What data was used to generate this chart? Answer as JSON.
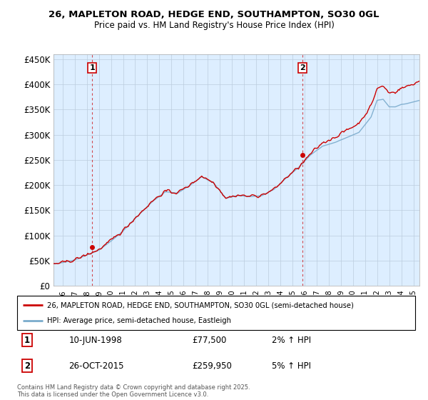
{
  "title": "26, MAPLETON ROAD, HEDGE END, SOUTHAMPTON, SO30 0GL",
  "subtitle": "Price paid vs. HM Land Registry's House Price Index (HPI)",
  "ylabel_ticks": [
    "£0",
    "£50K",
    "£100K",
    "£150K",
    "£200K",
    "£250K",
    "£300K",
    "£350K",
    "£400K",
    "£450K"
  ],
  "ytick_values": [
    0,
    50000,
    100000,
    150000,
    200000,
    250000,
    300000,
    350000,
    400000,
    450000
  ],
  "ylim": [
    0,
    460000
  ],
  "xlim_start": 1995.25,
  "xlim_end": 2025.5,
  "marker1_x": 1998.44,
  "marker1_y": 77500,
  "marker1_label": "1",
  "marker2_x": 2015.82,
  "marker2_y": 259950,
  "marker2_label": "2",
  "legend_line1": "26, MAPLETON ROAD, HEDGE END, SOUTHAMPTON, SO30 0GL (semi-detached house)",
  "legend_line2": "HPI: Average price, semi-detached house, Eastleigh",
  "annotation1_date": "10-JUN-1998",
  "annotation1_price": "£77,500",
  "annotation1_hpi": "2% ↑ HPI",
  "annotation2_date": "26-OCT-2015",
  "annotation2_price": "£259,950",
  "annotation2_hpi": "5% ↑ HPI",
  "footer": "Contains HM Land Registry data © Crown copyright and database right 2025.\nThis data is licensed under the Open Government Licence v3.0.",
  "line_color_red": "#cc0000",
  "line_color_blue": "#7aabcc",
  "bg_fill": "#ddeeff",
  "background_color": "#ffffff",
  "grid_color": "#bbccdd"
}
